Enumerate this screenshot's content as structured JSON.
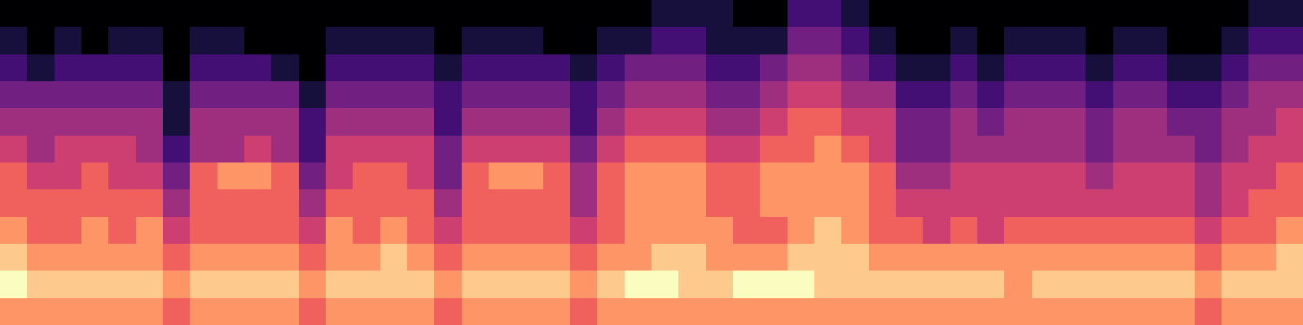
{
  "chart_data": {
    "type": "heatmap",
    "color": "magma",
    "tick_labels": false,
    "grid": false,
    "color_range": [
      0,
      9
    ],
    "cells": [
      [
        0,
        0,
        0,
        0,
        0,
        0,
        0,
        0,
        0,
        0,
        0,
        0,
        0,
        0,
        0,
        0,
        0,
        0,
        0,
        0,
        0,
        0,
        0,
        0,
        1,
        1,
        1,
        0,
        0,
        2,
        2,
        1,
        0,
        0,
        0,
        0,
        0,
        0,
        0,
        0,
        0,
        0,
        0,
        0,
        0,
        0,
        1,
        1
      ],
      [
        1,
        0,
        1,
        0,
        1,
        1,
        0,
        1,
        1,
        0,
        0,
        0,
        1,
        1,
        1,
        1,
        0,
        1,
        1,
        1,
        0,
        0,
        1,
        1,
        2,
        2,
        1,
        1,
        1,
        3,
        3,
        2,
        1,
        0,
        0,
        1,
        0,
        1,
        1,
        1,
        0,
        1,
        1,
        0,
        0,
        1,
        2,
        2
      ],
      [
        2,
        1,
        2,
        2,
        2,
        2,
        0,
        2,
        2,
        2,
        1,
        0,
        2,
        2,
        2,
        2,
        1,
        2,
        2,
        2,
        2,
        1,
        2,
        3,
        3,
        3,
        2,
        2,
        3,
        4,
        4,
        3,
        2,
        1,
        1,
        2,
        1,
        2,
        2,
        2,
        1,
        2,
        2,
        1,
        1,
        2,
        3,
        3
      ],
      [
        3,
        3,
        3,
        3,
        3,
        3,
        1,
        3,
        3,
        3,
        3,
        1,
        3,
        3,
        3,
        3,
        2,
        3,
        3,
        3,
        3,
        2,
        3,
        4,
        4,
        4,
        3,
        3,
        4,
        5,
        5,
        4,
        4,
        2,
        2,
        3,
        2,
        3,
        3,
        3,
        2,
        3,
        3,
        2,
        2,
        3,
        4,
        4
      ],
      [
        4,
        4,
        4,
        4,
        4,
        4,
        1,
        4,
        4,
        4,
        4,
        2,
        4,
        4,
        4,
        4,
        2,
        4,
        4,
        4,
        4,
        2,
        4,
        5,
        5,
        5,
        4,
        4,
        5,
        6,
        6,
        5,
        5,
        3,
        3,
        4,
        3,
        4,
        4,
        4,
        3,
        4,
        4,
        3,
        3,
        4,
        4,
        5
      ],
      [
        5,
        4,
        5,
        5,
        5,
        4,
        2,
        4,
        4,
        5,
        4,
        2,
        5,
        5,
        5,
        5,
        3,
        5,
        5,
        5,
        5,
        3,
        5,
        6,
        6,
        6,
        5,
        5,
        6,
        6,
        7,
        6,
        5,
        3,
        3,
        4,
        4,
        4,
        4,
        4,
        3,
        4,
        4,
        4,
        3,
        4,
        5,
        5
      ],
      [
        6,
        5,
        5,
        6,
        5,
        5,
        3,
        6,
        7,
        7,
        6,
        3,
        5,
        6,
        6,
        5,
        3,
        6,
        7,
        7,
        6,
        4,
        6,
        7,
        7,
        7,
        6,
        6,
        7,
        7,
        7,
        7,
        6,
        4,
        4,
        5,
        5,
        5,
        5,
        5,
        4,
        5,
        5,
        5,
        4,
        5,
        5,
        6
      ],
      [
        6,
        6,
        6,
        6,
        6,
        6,
        4,
        6,
        6,
        6,
        6,
        4,
        6,
        6,
        6,
        6,
        4,
        6,
        6,
        6,
        6,
        4,
        6,
        7,
        7,
        7,
        6,
        6,
        7,
        7,
        7,
        7,
        6,
        5,
        5,
        5,
        5,
        5,
        5,
        5,
        5,
        5,
        5,
        5,
        4,
        5,
        6,
        6
      ],
      [
        7,
        6,
        6,
        7,
        6,
        7,
        5,
        6,
        6,
        6,
        6,
        5,
        7,
        6,
        7,
        6,
        5,
        6,
        6,
        6,
        6,
        5,
        6,
        7,
        7,
        7,
        7,
        6,
        6,
        7,
        8,
        7,
        6,
        6,
        5,
        6,
        5,
        6,
        6,
        6,
        6,
        6,
        6,
        6,
        5,
        6,
        6,
        7
      ],
      [
        8,
        7,
        7,
        7,
        7,
        7,
        6,
        7,
        7,
        7,
        7,
        6,
        7,
        7,
        8,
        7,
        6,
        7,
        7,
        7,
        7,
        6,
        7,
        7,
        8,
        8,
        7,
        7,
        7,
        8,
        8,
        8,
        7,
        7,
        7,
        7,
        7,
        7,
        7,
        7,
        7,
        7,
        7,
        7,
        6,
        7,
        7,
        8
      ],
      [
        9,
        8,
        8,
        8,
        8,
        8,
        7,
        8,
        8,
        8,
        8,
        7,
        8,
        8,
        8,
        8,
        7,
        8,
        8,
        8,
        8,
        7,
        8,
        9,
        9,
        8,
        8,
        9,
        9,
        9,
        8,
        8,
        8,
        8,
        8,
        8,
        8,
        7,
        8,
        8,
        8,
        8,
        8,
        8,
        7,
        8,
        8,
        8
      ],
      [
        7,
        7,
        7,
        7,
        7,
        7,
        6,
        7,
        7,
        7,
        7,
        6,
        7,
        7,
        7,
        7,
        6,
        7,
        7,
        7,
        7,
        6,
        7,
        7,
        7,
        7,
        7,
        7,
        7,
        7,
        7,
        7,
        7,
        7,
        7,
        7,
        7,
        7,
        7,
        7,
        7,
        7,
        7,
        7,
        6,
        7,
        7,
        7
      ]
    ]
  }
}
